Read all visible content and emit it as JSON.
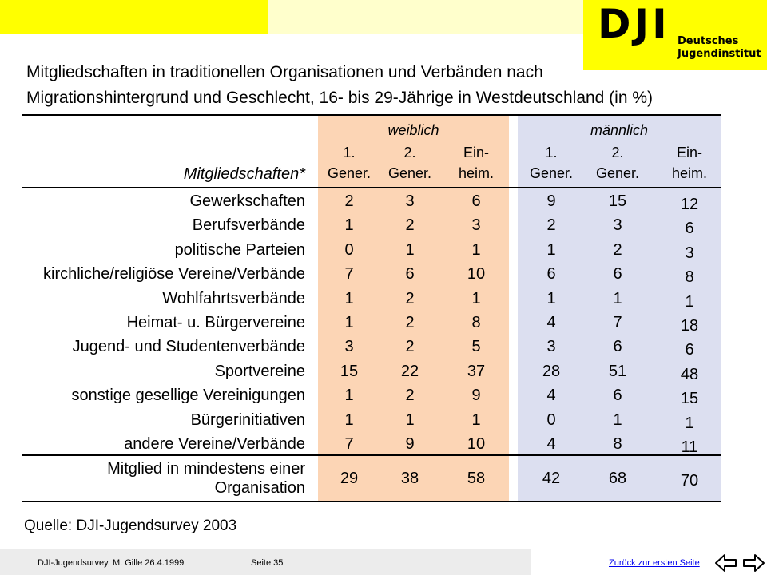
{
  "logo": {
    "mark": "DJI",
    "line1": "Deutsches",
    "line2": "Jugendinstitut"
  },
  "title": {
    "line1": "Mitgliedschaften in traditionellen Organisationen und Verbänden nach",
    "line2": "Migrationshintergrund und Geschlecht, 16- bis 29-Jährige in Westdeutschland (in %)"
  },
  "table": {
    "row_header_label": "Mitgliedschaften*",
    "groups": [
      "weiblich",
      "männlich"
    ],
    "subheaders": [
      {
        "l1": "1.",
        "l2": "Gener."
      },
      {
        "l1": "2.",
        "l2": "Gener."
      },
      {
        "l1": "Ein-",
        "l2": "heim."
      },
      {
        "l1": "1.",
        "l2": "Gener."
      },
      {
        "l1": "2.",
        "l2": "Gener."
      },
      {
        "l1": "Ein-",
        "l2": "heim."
      }
    ],
    "rows": [
      {
        "label": "Gewerkschaften",
        "values": [
          "2",
          "3",
          "6",
          "9",
          "15",
          "12"
        ]
      },
      {
        "label": "Berufsverbände",
        "values": [
          "1",
          "2",
          "3",
          "2",
          "3",
          "6"
        ]
      },
      {
        "label": "politische Parteien",
        "values": [
          "0",
          "1",
          "1",
          "1",
          "2",
          "3"
        ]
      },
      {
        "label": "kirchliche/religiöse Vereine/Verbände",
        "values": [
          "7",
          "6",
          "10",
          "6",
          "6",
          "8"
        ]
      },
      {
        "label": "Wohlfahrtsverbände",
        "values": [
          "1",
          "2",
          "1",
          "1",
          "1",
          "1"
        ]
      },
      {
        "label": "Heimat- u. Bürgervereine",
        "values": [
          "1",
          "2",
          "8",
          "4",
          "7",
          "18"
        ]
      },
      {
        "label": "Jugend- und Studentenverbände",
        "values": [
          "3",
          "2",
          "5",
          "3",
          "6",
          "6"
        ]
      },
      {
        "label": "Sportvereine",
        "values": [
          "15",
          "22",
          "37",
          "28",
          "51",
          "48"
        ]
      },
      {
        "label": "sonstige gesellige Vereinigungen",
        "values": [
          "1",
          "2",
          "9",
          "4",
          "6",
          "15"
        ]
      },
      {
        "label": "Bürgerinitiativen",
        "values": [
          "1",
          "1",
          "1",
          "0",
          "1",
          "1"
        ]
      },
      {
        "label": "andere Vereine/Verbände",
        "values": [
          "7",
          "9",
          "10",
          "4",
          "8",
          "11"
        ]
      }
    ],
    "total": {
      "label1": "Mitglied in mindestens einer",
      "label2": "Organisation",
      "values": [
        "29",
        "38",
        "58",
        "42",
        "68",
        "70"
      ]
    }
  },
  "source": "Quelle: DJI-Jugendsurvey 2003",
  "footer": {
    "left": "DJI-Jugendsurvey, M. Gille   26.4.1999",
    "page": "Seite 35",
    "link": "Zurück zur ersten Seite"
  },
  "colors": {
    "weiblich_bg": "#fcd5b5",
    "maennlich_bg": "#dcdff0",
    "logo_bg": "#ffff00"
  },
  "icons": {
    "back": "arrow-left-icon",
    "forward": "arrow-right-icon"
  }
}
